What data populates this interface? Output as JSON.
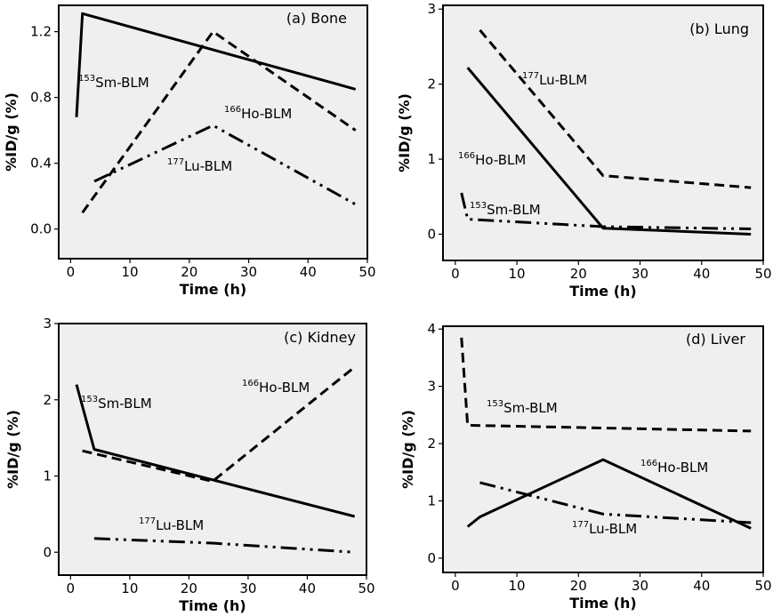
{
  "chart_data": [
    {
      "type": "line",
      "title": "(a) Bone",
      "xlabel": "Time (h)",
      "ylabel": "%ID/g (%)",
      "xlim": [
        -2,
        50
      ],
      "ylim": [
        -0.18,
        1.36
      ],
      "xticks": [
        0,
        10,
        20,
        30,
        40,
        50
      ],
      "yticks": [
        0.0,
        0.4,
        0.8,
        1.2
      ],
      "ytick_labels": [
        "0.0",
        "0.4",
        "0.8",
        "1.2"
      ],
      "series": [
        {
          "name": "153Sm-BLM",
          "label_pre": "153",
          "label_main": "Sm-BLM",
          "style": "solid",
          "x": [
            1,
            2,
            48
          ],
          "y": [
            0.68,
            1.31,
            0.85
          ]
        },
        {
          "name": "166Ho-BLM",
          "label_pre": "166",
          "label_main": "Ho-BLM",
          "style": "dash",
          "x": [
            2,
            24,
            48
          ],
          "y": [
            0.1,
            1.2,
            0.6
          ]
        },
        {
          "name": "177Lu-BLM",
          "label_pre": "177",
          "label_main": "Lu-BLM",
          "style": "dashdot",
          "x": [
            4,
            24,
            48
          ],
          "y": [
            0.29,
            0.63,
            0.15
          ]
        }
      ]
    },
    {
      "type": "line",
      "title": "(b) Lung",
      "xlabel": "Time (h)",
      "ylabel": "%ID/g (%)",
      "xlim": [
        -2,
        50
      ],
      "ylim": [
        -0.35,
        3.05
      ],
      "xticks": [
        0,
        10,
        20,
        30,
        40,
        50
      ],
      "yticks": [
        0,
        1,
        2,
        3
      ],
      "ytick_labels": [
        "0",
        "1",
        "2",
        "3"
      ],
      "series": [
        {
          "name": "177Lu-BLM",
          "label_pre": "177",
          "label_main": "Lu-BLM",
          "style": "dash",
          "x": [
            4,
            24,
            48
          ],
          "y": [
            2.72,
            0.78,
            0.62
          ]
        },
        {
          "name": "166Ho-BLM",
          "label_pre": "166",
          "label_main": "Ho-BLM",
          "style": "solid",
          "x": [
            2,
            24,
            48
          ],
          "y": [
            2.22,
            0.08,
            0.0
          ]
        },
        {
          "name": "153Sm-BLM",
          "label_pre": "153",
          "label_main": "Sm-BLM",
          "style": "dashdot",
          "x": [
            1,
            2,
            24,
            48
          ],
          "y": [
            0.55,
            0.2,
            0.1,
            0.07
          ]
        }
      ]
    },
    {
      "type": "line",
      "title": "(c) Kidney",
      "xlabel": "Time (h)",
      "ylabel": "%ID/g (%)",
      "xlim": [
        -2,
        50
      ],
      "ylim": [
        -0.3,
        3.0
      ],
      "xticks": [
        0,
        10,
        20,
        30,
        40,
        50
      ],
      "yticks": [
        0,
        1,
        2,
        3
      ],
      "ytick_labels": [
        "0",
        "1",
        "2",
        "3"
      ],
      "series": [
        {
          "name": "153Sm-BLM",
          "label_pre": "153",
          "label_main": "Sm-BLM",
          "style": "solid",
          "x": [
            1,
            4,
            48
          ],
          "y": [
            2.2,
            1.35,
            0.47
          ]
        },
        {
          "name": "166Ho-BLM",
          "label_pre": "166",
          "label_main": "Ho-BLM",
          "style": "dash",
          "x": [
            2,
            24,
            48
          ],
          "y": [
            1.33,
            0.93,
            2.43
          ]
        },
        {
          "name": "177Lu-BLM",
          "label_pre": "177",
          "label_main": "Lu-BLM",
          "style": "dashdot",
          "x": [
            4,
            24,
            48
          ],
          "y": [
            0.18,
            0.12,
            0.0
          ]
        }
      ]
    },
    {
      "type": "line",
      "title": "(d) Liver",
      "xlabel": "Time (h)",
      "ylabel": "%ID/g (%)",
      "xlim": [
        -2,
        50
      ],
      "ylim": [
        -0.25,
        4.05
      ],
      "xticks": [
        0,
        10,
        20,
        30,
        40,
        50
      ],
      "yticks": [
        0,
        1,
        2,
        3,
        4
      ],
      "ytick_labels": [
        "0",
        "1",
        "2",
        "3",
        "4"
      ],
      "series": [
        {
          "name": "153Sm-BLM",
          "label_pre": "153",
          "label_main": "Sm-BLM",
          "style": "dash",
          "x": [
            1,
            2,
            48
          ],
          "y": [
            3.85,
            2.32,
            2.22
          ]
        },
        {
          "name": "166Ho-BLM",
          "label_pre": "166",
          "label_main": "Ho-BLM",
          "style": "solid",
          "x": [
            2,
            4,
            24,
            48
          ],
          "y": [
            0.55,
            0.72,
            1.72,
            0.52
          ]
        },
        {
          "name": "177Lu-BLM",
          "label_pre": "177",
          "label_main": "Lu-BLM",
          "style": "dashdot",
          "x": [
            4,
            24,
            48
          ],
          "y": [
            1.32,
            0.77,
            0.62
          ]
        }
      ]
    }
  ]
}
